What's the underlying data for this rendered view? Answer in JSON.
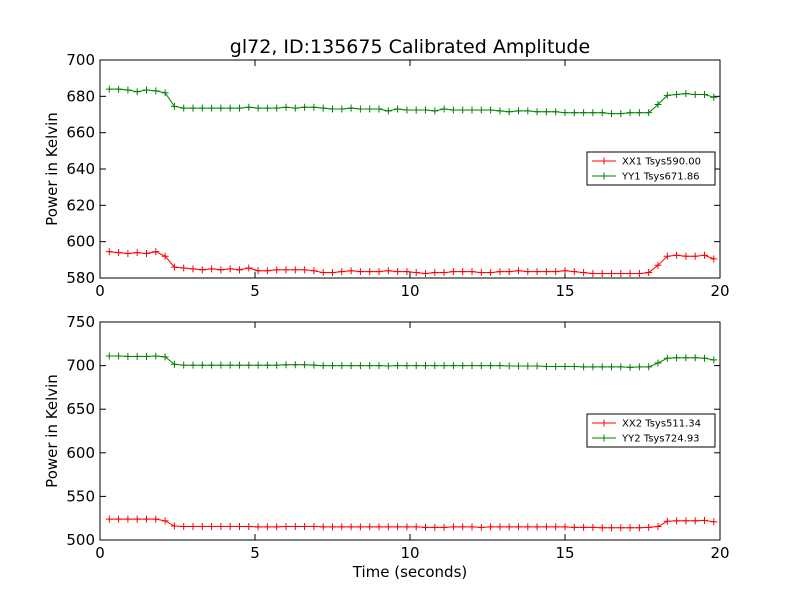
{
  "chart_data": [
    {
      "type": "line",
      "title": "gl72, ID:135675 Calibrated Amplitude",
      "xlabel": "",
      "ylabel": "Power in Kelvin",
      "xlim": [
        0,
        20
      ],
      "ylim": [
        580,
        700
      ],
      "xticks": [
        0,
        5,
        10,
        15,
        20
      ],
      "yticks": [
        580,
        600,
        620,
        640,
        660,
        680,
        700
      ],
      "grid": false,
      "legend_position": "center-right",
      "x": [
        0.3,
        0.6,
        0.9,
        1.2,
        1.5,
        1.8,
        2.1,
        2.4,
        2.7,
        3.0,
        3.3,
        3.6,
        3.9,
        4.2,
        4.5,
        4.8,
        5.1,
        5.4,
        5.7,
        6.0,
        6.3,
        6.6,
        6.9,
        7.2,
        7.5,
        7.8,
        8.1,
        8.4,
        8.7,
        9.0,
        9.3,
        9.6,
        9.9,
        10.2,
        10.5,
        10.8,
        11.1,
        11.4,
        11.7,
        12.0,
        12.3,
        12.6,
        12.9,
        13.2,
        13.5,
        13.8,
        14.1,
        14.4,
        14.7,
        15.0,
        15.3,
        15.6,
        15.9,
        16.2,
        16.5,
        16.8,
        17.1,
        17.4,
        17.7,
        18.0,
        18.3,
        18.6,
        18.9,
        19.2,
        19.5,
        19.8
      ],
      "series": [
        {
          "name": "XX1 Tsys590.00",
          "color": "#ff0000",
          "values": [
            594.5,
            594,
            593.5,
            594,
            593.5,
            594.5,
            592,
            586,
            585.5,
            585,
            584.5,
            585,
            584.5,
            585,
            584.5,
            585.5,
            584,
            584,
            584.5,
            584.5,
            584.5,
            584.5,
            584,
            583,
            583,
            583.5,
            584,
            583.5,
            583.5,
            583.5,
            584,
            583.5,
            583.5,
            583,
            582.5,
            583,
            583,
            583.5,
            583.5,
            583.5,
            583,
            583,
            583.5,
            583.5,
            584,
            583.5,
            583.5,
            583.5,
            583.5,
            584,
            583.5,
            583,
            582.5,
            582.5,
            582.5,
            582.5,
            582.5,
            582.5,
            583,
            587,
            592,
            592.5,
            592,
            592,
            592.5,
            590.5
          ]
        },
        {
          "name": "YY1 Tsys671.86",
          "color": "#008000",
          "values": [
            684,
            684,
            683.5,
            682.5,
            683.5,
            683,
            682,
            674.5,
            673.5,
            673.5,
            673.5,
            673.5,
            673.5,
            673.5,
            673.5,
            674,
            673.5,
            673.5,
            673.5,
            674,
            673.5,
            674,
            674,
            673.5,
            673,
            673,
            673.5,
            673,
            673,
            673,
            672,
            673,
            672.5,
            672.5,
            672.5,
            672,
            673,
            672.5,
            672.5,
            672.5,
            672.5,
            672.5,
            672,
            671.5,
            672,
            672,
            671.5,
            671.5,
            671.5,
            671,
            671,
            671,
            671,
            671,
            670.5,
            670.5,
            671,
            671,
            671,
            675.5,
            680.5,
            681,
            681.5,
            681,
            681,
            679.5
          ]
        }
      ]
    },
    {
      "type": "line",
      "title": "",
      "xlabel": "Time (seconds)",
      "ylabel": "Power in Kelvin",
      "xlim": [
        0,
        20
      ],
      "ylim": [
        500,
        750
      ],
      "xticks": [
        0,
        5,
        10,
        15,
        20
      ],
      "yticks": [
        500,
        550,
        600,
        650,
        700,
        750
      ],
      "grid": false,
      "legend_position": "center-right",
      "x": [
        0.3,
        0.6,
        0.9,
        1.2,
        1.5,
        1.8,
        2.1,
        2.4,
        2.7,
        3.0,
        3.3,
        3.6,
        3.9,
        4.2,
        4.5,
        4.8,
        5.1,
        5.4,
        5.7,
        6.0,
        6.3,
        6.6,
        6.9,
        7.2,
        7.5,
        7.8,
        8.1,
        8.4,
        8.7,
        9.0,
        9.3,
        9.6,
        9.9,
        10.2,
        10.5,
        10.8,
        11.1,
        11.4,
        11.7,
        12.0,
        12.3,
        12.6,
        12.9,
        13.2,
        13.5,
        13.8,
        14.1,
        14.4,
        14.7,
        15.0,
        15.3,
        15.6,
        15.9,
        16.2,
        16.5,
        16.8,
        17.1,
        17.4,
        17.7,
        18.0,
        18.3,
        18.6,
        18.9,
        19.2,
        19.5,
        19.8
      ],
      "series": [
        {
          "name": "XX2 Tsys511.34",
          "color": "#ff0000",
          "values": [
            524,
            524,
            524,
            524,
            524,
            524,
            522,
            516,
            515.5,
            515.5,
            515.5,
            515.5,
            515.5,
            515.5,
            515.5,
            515.5,
            515,
            515,
            515,
            515.5,
            515.5,
            515.5,
            515.5,
            515,
            515,
            515,
            515,
            515,
            515,
            515,
            515,
            515,
            515,
            515,
            514.5,
            514.5,
            514.5,
            515,
            515,
            515,
            514.5,
            515,
            515,
            515,
            515,
            515,
            515,
            515,
            515,
            515,
            514.5,
            514.5,
            514.5,
            514,
            514,
            514,
            514,
            514,
            514.5,
            515.5,
            521.5,
            522,
            522,
            522,
            522.5,
            521
          ]
        },
        {
          "name": "YY2 Tsys724.93",
          "color": "#008000",
          "values": [
            711,
            711,
            710.5,
            710.5,
            710.5,
            711,
            710,
            701.5,
            700.5,
            700.5,
            700.5,
            700.5,
            700.5,
            700.5,
            700.5,
            700.5,
            700.5,
            700.5,
            700.5,
            701,
            701,
            701,
            700.5,
            700,
            700,
            700,
            700,
            700,
            700,
            700,
            699.5,
            700,
            700,
            700,
            700,
            700,
            700,
            700,
            700,
            700,
            700,
            700,
            700,
            699.5,
            699.5,
            699.5,
            699.5,
            699,
            699,
            699,
            699,
            698.5,
            698.5,
            698.5,
            698.5,
            698.5,
            698,
            698.5,
            698.5,
            703,
            708.5,
            709,
            709,
            709,
            708.5,
            706.5
          ]
        }
      ]
    }
  ]
}
